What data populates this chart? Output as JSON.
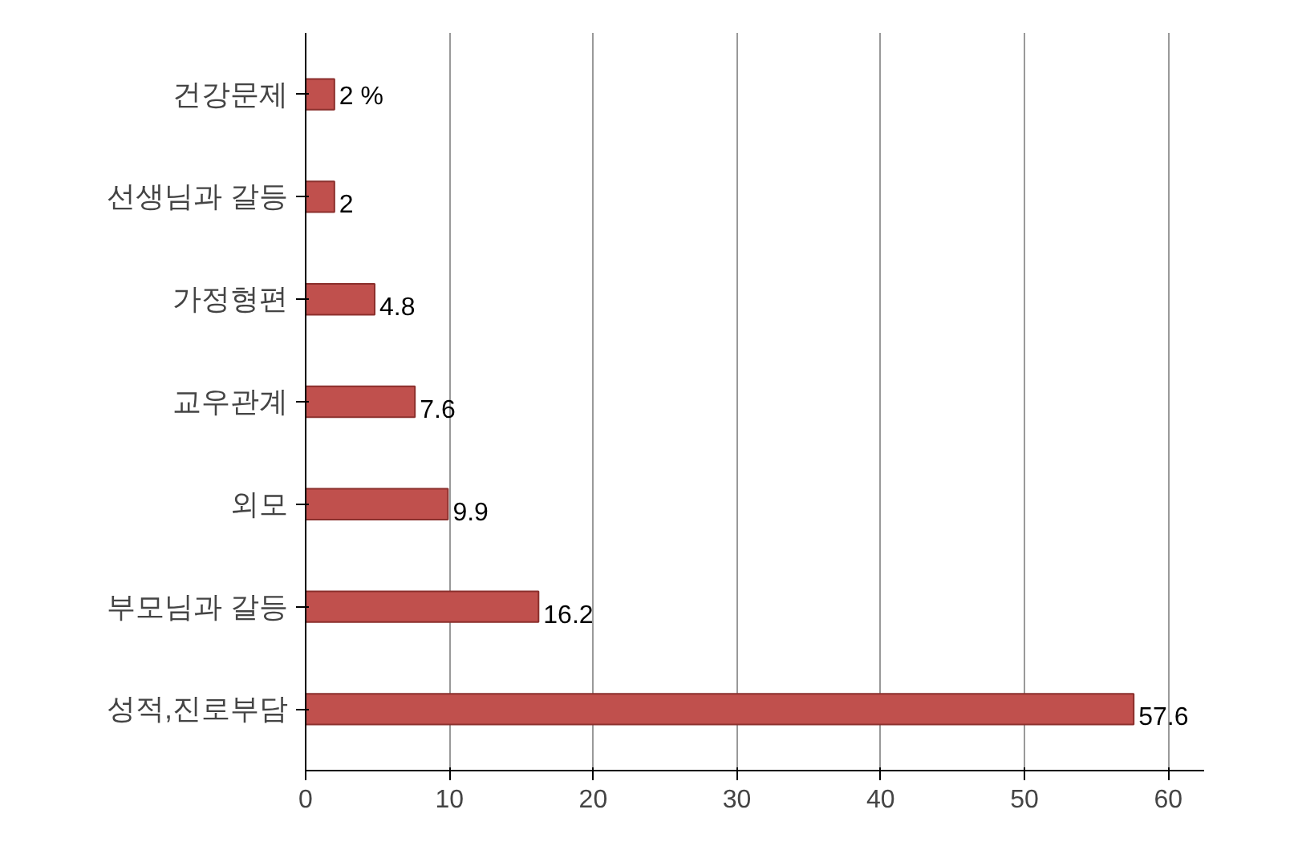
{
  "chart_data": {
    "type": "bar",
    "orientation": "horizontal",
    "categories": [
      "건강문제",
      "선생님과 갈등",
      "가정형편",
      "교우관계",
      "외모",
      "부모님과 갈등",
      "성적,진로부담"
    ],
    "values": [
      2,
      2,
      4.8,
      7.6,
      9.9,
      16.2,
      57.6
    ],
    "value_labels": [
      "2 %",
      "2",
      "4.8",
      "7.6",
      "9.9",
      "16.2",
      "57.6"
    ],
    "color": "#c0504d",
    "xlim": [
      0,
      62.5
    ],
    "xticks": [
      0,
      10,
      20,
      30,
      40,
      50,
      60
    ],
    "grid": "x"
  }
}
